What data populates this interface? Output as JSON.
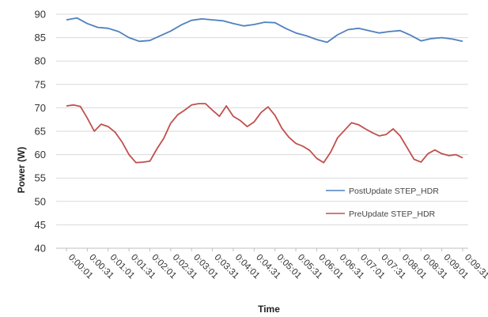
{
  "chart_data": {
    "type": "line",
    "title": "",
    "xlabel": "Time",
    "ylabel": "Power (W)",
    "ylim": [
      40,
      90
    ],
    "y_ticks": [
      40,
      45,
      50,
      55,
      60,
      65,
      70,
      75,
      80,
      85,
      90
    ],
    "x_tick_labels": [
      "0:00:01",
      "0:00:31",
      "0:01:01",
      "0:01:31",
      "0:02:01",
      "0:02:31",
      "0:03:01",
      "0:03:31",
      "0:04:01",
      "0:04:31",
      "0:05:01",
      "0:05:31",
      "0:06:01",
      "0:06:31",
      "0:07:01",
      "0:07:31",
      "0:08:01",
      "0:08:31",
      "0:09:01",
      "0:09:31"
    ],
    "x_seconds": [
      1,
      571
    ],
    "grid": "horizontal",
    "legend_position": "bottom-right",
    "series": [
      {
        "name": "PostUpdate STEP_HDR",
        "color": "#4f81bd",
        "points": [
          [
            1,
            88.8
          ],
          [
            16,
            89.2
          ],
          [
            31,
            88.0
          ],
          [
            46,
            87.2
          ],
          [
            61,
            87.0
          ],
          [
            76,
            86.3
          ],
          [
            91,
            85.0
          ],
          [
            106,
            84.2
          ],
          [
            121,
            84.4
          ],
          [
            136,
            85.4
          ],
          [
            151,
            86.4
          ],
          [
            166,
            87.7
          ],
          [
            181,
            88.7
          ],
          [
            196,
            89.0
          ],
          [
            211,
            88.8
          ],
          [
            226,
            88.6
          ],
          [
            241,
            88.0
          ],
          [
            256,
            87.5
          ],
          [
            271,
            87.8
          ],
          [
            286,
            88.3
          ],
          [
            301,
            88.2
          ],
          [
            316,
            87.0
          ],
          [
            331,
            86.0
          ],
          [
            346,
            85.4
          ],
          [
            361,
            84.6
          ],
          [
            376,
            84.0
          ],
          [
            391,
            85.6
          ],
          [
            406,
            86.7
          ],
          [
            421,
            87.0
          ],
          [
            436,
            86.5
          ],
          [
            451,
            86.0
          ],
          [
            466,
            86.3
          ],
          [
            481,
            86.5
          ],
          [
            496,
            85.5
          ],
          [
            511,
            84.3
          ],
          [
            526,
            84.8
          ],
          [
            541,
            85.0
          ],
          [
            556,
            84.7
          ],
          [
            571,
            84.2
          ]
        ]
      },
      {
        "name": "PreUpdate STEP_HDR",
        "color": "#c0504d",
        "points": [
          [
            1,
            70.4
          ],
          [
            11,
            70.6
          ],
          [
            21,
            70.3
          ],
          [
            31,
            67.8
          ],
          [
            41,
            65.0
          ],
          [
            51,
            66.5
          ],
          [
            61,
            66.0
          ],
          [
            71,
            64.8
          ],
          [
            81,
            62.7
          ],
          [
            91,
            60.0
          ],
          [
            101,
            58.3
          ],
          [
            111,
            58.4
          ],
          [
            121,
            58.6
          ],
          [
            131,
            61.2
          ],
          [
            141,
            63.5
          ],
          [
            151,
            66.7
          ],
          [
            161,
            68.5
          ],
          [
            171,
            69.5
          ],
          [
            181,
            70.6
          ],
          [
            191,
            70.9
          ],
          [
            201,
            70.9
          ],
          [
            211,
            69.5
          ],
          [
            221,
            68.2
          ],
          [
            231,
            70.4
          ],
          [
            241,
            68.2
          ],
          [
            251,
            67.3
          ],
          [
            261,
            66.0
          ],
          [
            271,
            67.0
          ],
          [
            281,
            69.0
          ],
          [
            291,
            70.2
          ],
          [
            301,
            68.4
          ],
          [
            311,
            65.6
          ],
          [
            321,
            63.7
          ],
          [
            331,
            62.4
          ],
          [
            341,
            61.8
          ],
          [
            351,
            60.9
          ],
          [
            361,
            59.2
          ],
          [
            371,
            58.3
          ],
          [
            381,
            60.5
          ],
          [
            391,
            63.6
          ],
          [
            401,
            65.2
          ],
          [
            411,
            66.8
          ],
          [
            421,
            66.4
          ],
          [
            431,
            65.5
          ],
          [
            441,
            64.7
          ],
          [
            451,
            64.0
          ],
          [
            461,
            64.3
          ],
          [
            471,
            65.5
          ],
          [
            481,
            64.0
          ],
          [
            491,
            61.5
          ],
          [
            501,
            59.0
          ],
          [
            511,
            58.4
          ],
          [
            521,
            60.2
          ],
          [
            531,
            61.0
          ],
          [
            541,
            60.2
          ],
          [
            551,
            59.8
          ],
          [
            561,
            60.0
          ],
          [
            571,
            59.3
          ]
        ]
      }
    ]
  }
}
